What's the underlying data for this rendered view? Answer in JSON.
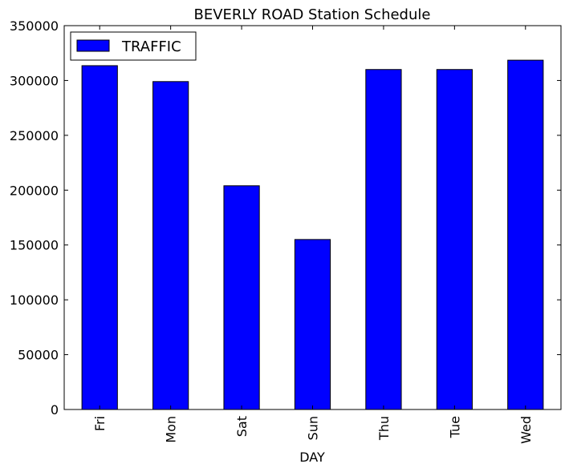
{
  "chart_data": {
    "type": "bar",
    "title": "BEVERLY ROAD Station Schedule",
    "xlabel": "DAY",
    "ylabel": "",
    "categories": [
      "Fri",
      "Mon",
      "Sat",
      "Sun",
      "Thu",
      "Tue",
      "Wed"
    ],
    "series": [
      {
        "name": "TRAFFIC",
        "color": "#0000ff",
        "values": [
          313500,
          299000,
          204000,
          155000,
          310000,
          310000,
          318500
        ]
      }
    ],
    "ylim": [
      0,
      350000
    ],
    "yticks": [
      0,
      50000,
      100000,
      150000,
      200000,
      250000,
      300000,
      350000
    ],
    "grid": false,
    "legend_position": "top-left"
  }
}
